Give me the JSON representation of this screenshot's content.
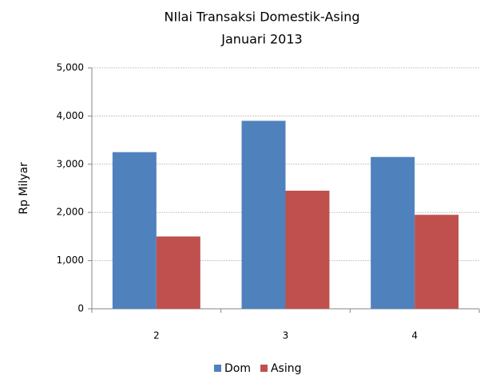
{
  "chart_data": {
    "type": "bar",
    "title": "NIlai Transaksi Domestik-Asing",
    "subtitle": "Januari 2013",
    "y_label": "Rp Milyar",
    "categories": [
      "2",
      "3",
      "4"
    ],
    "series": [
      {
        "name": "Dom",
        "color": "#4f81bd",
        "values": [
          3250,
          3900,
          3150
        ]
      },
      {
        "name": "Asing",
        "color": "#c0504d",
        "values": [
          1500,
          2450,
          1950
        ]
      }
    ],
    "ylim": [
      0,
      5000
    ],
    "yticks": [
      0,
      {
        "value": 1000,
        "label": "1,000"
      },
      {
        "value": 2000,
        "label": "2,000"
      },
      {
        "value": 3000,
        "label": "3,000"
      },
      {
        "value": 4000,
        "label": "4,000"
      },
      {
        "value": 5000,
        "label": "5,000"
      }
    ],
    "grid": true,
    "legend": "bottom"
  }
}
